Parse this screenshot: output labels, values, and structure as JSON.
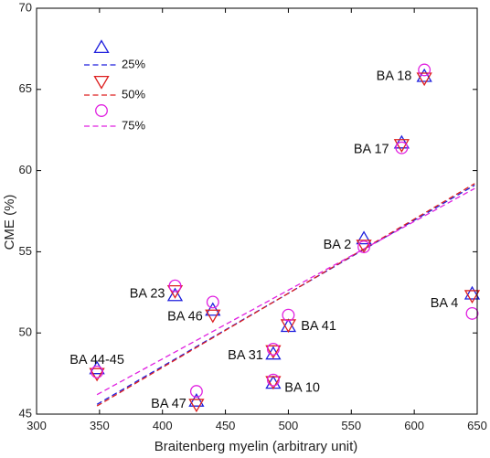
{
  "chart_data": {
    "type": "scatter",
    "title": "",
    "xlabel": "Braitenberg myelin (arbitrary unit)",
    "ylabel": "CME (%)",
    "xlim": [
      300,
      650
    ],
    "ylim": [
      45,
      70
    ],
    "xticks": [
      300,
      350,
      400,
      450,
      500,
      550,
      600,
      650
    ],
    "yticks": [
      45,
      50,
      55,
      60,
      65,
      70
    ],
    "grid": false,
    "legend_position": "top-left",
    "colors": {
      "p25": "#1f1fdd",
      "p50": "#dd1f1f",
      "p75": "#e020e0",
      "axis": "#000000"
    },
    "series": [
      {
        "name": "25%",
        "marker": "triangle-up",
        "color": "#1f1fdd",
        "x": [
          348,
          410,
          440,
          488,
          500,
          488,
          427,
          560,
          590,
          608,
          646
        ],
        "y": [
          47.8,
          52.3,
          51.4,
          48.7,
          50.4,
          46.9,
          45.8,
          55.8,
          61.7,
          65.8,
          52.4
        ],
        "fit": {
          "x": [
            348,
            648
          ],
          "y": [
            45.6,
            59.1
          ]
        }
      },
      {
        "name": "50%",
        "marker": "triangle-down",
        "color": "#dd1f1f",
        "x": [
          348,
          410,
          440,
          488,
          500,
          488,
          427,
          560,
          590,
          608,
          646
        ],
        "y": [
          47.5,
          52.6,
          51.1,
          48.9,
          50.5,
          47.0,
          45.6,
          55.4,
          61.6,
          65.7,
          52.3
        ],
        "fit": {
          "x": [
            348,
            648
          ],
          "y": [
            45.5,
            59.2
          ]
        }
      },
      {
        "name": "75%",
        "marker": "circle",
        "color": "#e020e0",
        "x": [
          348,
          410,
          440,
          488,
          500,
          488,
          427,
          560,
          590,
          608,
          646
        ],
        "y": [
          47.6,
          52.9,
          51.9,
          49.0,
          51.1,
          47.1,
          46.4,
          55.3,
          61.4,
          66.2,
          51.2
        ],
        "fit": {
          "x": [
            348,
            648
          ],
          "y": [
            46.2,
            58.9
          ]
        }
      }
    ],
    "point_labels": [
      {
        "text": "BA 44-45",
        "x": 348,
        "y": 48.3,
        "anchor": "middle"
      },
      {
        "text": "BA 23",
        "x": 402,
        "y": 52.4,
        "anchor": "end"
      },
      {
        "text": "BA 46",
        "x": 432,
        "y": 51.0,
        "anchor": "end"
      },
      {
        "text": "BA 31",
        "x": 480,
        "y": 48.6,
        "anchor": "end"
      },
      {
        "text": "BA 41",
        "x": 510,
        "y": 50.4,
        "anchor": "start"
      },
      {
        "text": "BA 10",
        "x": 497,
        "y": 46.6,
        "anchor": "start"
      },
      {
        "text": "BA 47",
        "x": 419,
        "y": 45.6,
        "anchor": "end"
      },
      {
        "text": "BA 2",
        "x": 550,
        "y": 55.4,
        "anchor": "end"
      },
      {
        "text": "BA 17",
        "x": 580,
        "y": 61.3,
        "anchor": "end"
      },
      {
        "text": "BA 18",
        "x": 598,
        "y": 65.8,
        "anchor": "end"
      },
      {
        "text": "BA 4",
        "x": 635,
        "y": 51.8,
        "anchor": "end"
      }
    ]
  }
}
